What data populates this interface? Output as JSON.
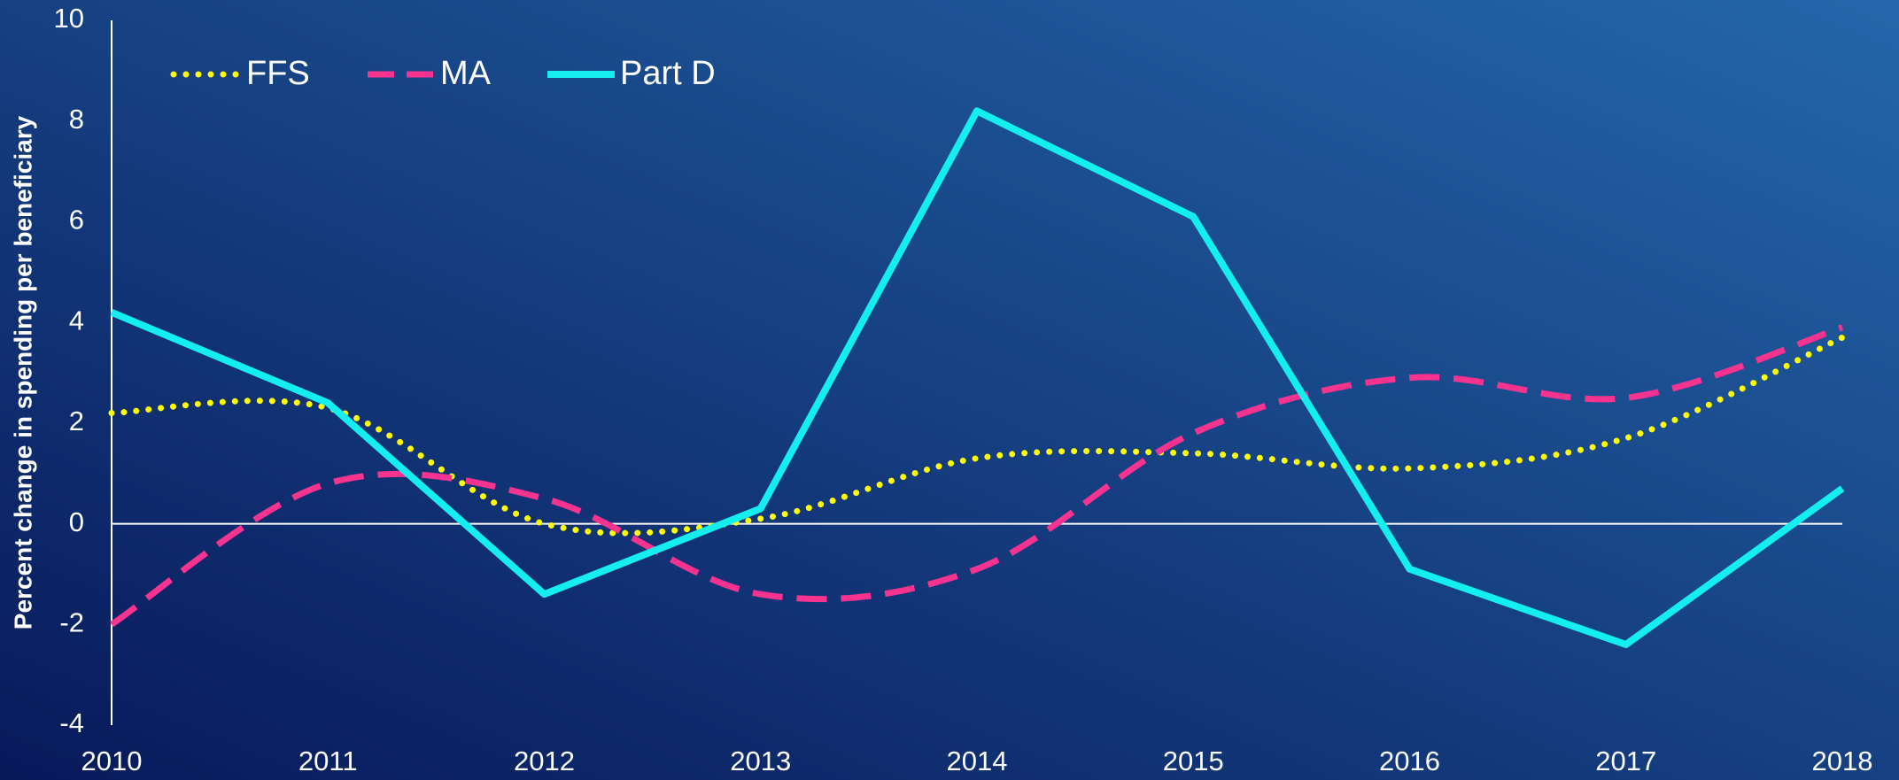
{
  "chart_data": {
    "type": "line",
    "y_label": "Percent change in spending per beneficiary",
    "categories": [
      "2010",
      "2011",
      "2012",
      "2013",
      "2014",
      "2015",
      "2016",
      "2017",
      "2018"
    ],
    "series": [
      {
        "name": "FFS",
        "color": "#ffff00",
        "dash": "dotted",
        "smooth": true,
        "values": [
          2.2,
          2.3,
          0.0,
          0.1,
          1.3,
          1.4,
          1.1,
          1.7,
          3.7
        ]
      },
      {
        "name": "MA",
        "color": "#f7338f",
        "dash": "dashed",
        "smooth": true,
        "values": [
          -2.0,
          0.8,
          0.5,
          -1.4,
          -0.9,
          1.8,
          2.9,
          2.5,
          3.9
        ]
      },
      {
        "name": "Part D",
        "color": "#14eeee",
        "dash": "solid",
        "smooth": false,
        "values": [
          4.2,
          2.4,
          -1.4,
          0.3,
          8.2,
          6.1,
          -0.9,
          -2.4,
          0.7
        ]
      }
    ],
    "ylim": [
      -4,
      10
    ],
    "yticks": [
      -4,
      -2,
      0,
      2,
      4,
      6,
      8,
      10
    ],
    "grid": false,
    "legend": "top-left"
  }
}
